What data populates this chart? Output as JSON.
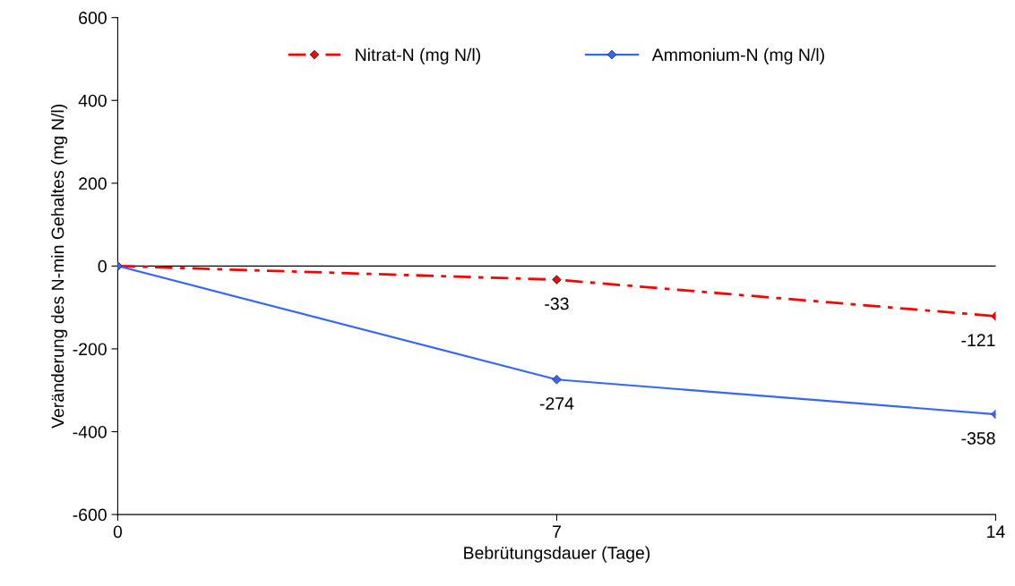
{
  "chart_data": {
    "type": "line",
    "xlabel": "Bebrütungsdauer (Tage)",
    "ylabel": "Veränderung des N-min Gehaltes (mg N/l)",
    "x": [
      0,
      7,
      14
    ],
    "series": [
      {
        "name": "Nitrat-N (mg N/l)",
        "color": "#ff0000",
        "line_style": "dashed",
        "values": [
          0,
          -33,
          -121
        ],
        "value_labels": [
          null,
          "-33",
          "-121"
        ]
      },
      {
        "name": "Ammonium-N (mg N/l)",
        "color": "#3366ff",
        "line_style": "solid",
        "values": [
          0,
          -274,
          -358
        ],
        "value_labels": [
          null,
          "-274",
          "-358"
        ]
      }
    ],
    "xlim": [
      0,
      14
    ],
    "xticks": [
      0,
      7,
      14
    ],
    "ylim": [
      -600,
      600
    ],
    "yticks": [
      -600,
      -400,
      -200,
      0,
      200,
      400,
      600
    ],
    "ref_lines": [
      {
        "axis": "y",
        "value": 0,
        "color": "#000000"
      }
    ],
    "marker": "diamond",
    "grid": false,
    "legend": "top"
  }
}
